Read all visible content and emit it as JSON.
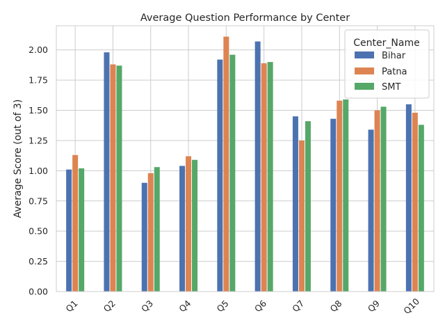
{
  "chart_data": {
    "type": "bar",
    "title": "Average Question Performance by Center",
    "xlabel": "",
    "ylabel": "Average Score (out of 3)",
    "ylim": [
      0,
      2.2
    ],
    "yticks": [
      "0.00",
      "0.25",
      "0.50",
      "0.75",
      "1.00",
      "1.25",
      "1.50",
      "1.75",
      "2.00"
    ],
    "grid": true,
    "legend": {
      "title": "Center_Name",
      "placement": "top-right"
    },
    "categories": [
      "Q1",
      "Q2",
      "Q3",
      "Q4",
      "Q5",
      "Q6",
      "Q7",
      "Q8",
      "Q9",
      "Q10"
    ],
    "series": [
      {
        "name": "Bihar",
        "color": "#4c72b0",
        "values": [
          1.01,
          1.98,
          0.9,
          1.04,
          1.92,
          2.07,
          1.45,
          1.43,
          1.34,
          1.55
        ]
      },
      {
        "name": "Patna",
        "color": "#dd8452",
        "values": [
          1.13,
          1.88,
          0.98,
          1.12,
          2.11,
          1.89,
          1.25,
          1.58,
          1.5,
          1.48
        ]
      },
      {
        "name": "SMT",
        "color": "#55a868",
        "values": [
          1.02,
          1.87,
          1.03,
          1.09,
          1.96,
          1.9,
          1.41,
          1.59,
          1.53,
          1.38
        ]
      }
    ]
  }
}
